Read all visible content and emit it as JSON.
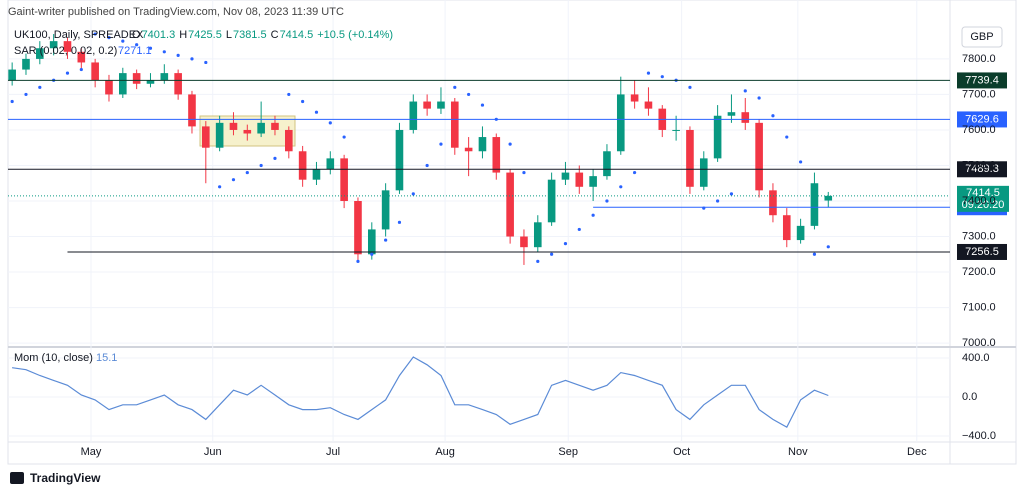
{
  "header": {
    "publisher": "Gaint-writer published on TradingView.com, Nov 08, 2023 11:39 UTC"
  },
  "footer": {
    "logo": "TradingView"
  },
  "chart_data": {
    "type": "candlestick",
    "symbol": "UK100, Daily, SPREADEX",
    "ohlc_letters": [
      "O",
      "H",
      "L",
      "C"
    ],
    "change": "+10.5 (+0.14%)",
    "currency": "GBP",
    "up_color": "#089981",
    "down_color": "#f23645",
    "candles": [
      [
        7740,
        7790,
        7725,
        7770
      ],
      [
        7770,
        7815,
        7755,
        7800
      ],
      [
        7800,
        7850,
        7785,
        7830
      ],
      [
        7830,
        7870,
        7810,
        7850
      ],
      [
        7850,
        7860,
        7800,
        7820
      ],
      [
        7820,
        7830,
        7770,
        7790
      ],
      [
        7790,
        7800,
        7720,
        7740
      ],
      [
        7740,
        7755,
        7680,
        7700
      ],
      [
        7700,
        7775,
        7690,
        7760
      ],
      [
        7760,
        7770,
        7715,
        7730
      ],
      [
        7730,
        7760,
        7720,
        7740
      ],
      [
        7740,
        7785,
        7730,
        7760
      ],
      [
        7760,
        7770,
        7685,
        7700
      ],
      [
        7700,
        7710,
        7590,
        7610
      ],
      [
        7610,
        7625,
        7450,
        7550
      ],
      [
        7550,
        7640,
        7540,
        7620
      ],
      [
        7620,
        7650,
        7585,
        7600
      ],
      [
        7600,
        7615,
        7570,
        7590
      ],
      [
        7590,
        7680,
        7580,
        7620
      ],
      [
        7620,
        7640,
        7585,
        7600
      ],
      [
        7600,
        7610,
        7520,
        7540
      ],
      [
        7540,
        7555,
        7440,
        7460
      ],
      [
        7460,
        7510,
        7445,
        7490
      ],
      [
        7490,
        7540,
        7475,
        7520
      ],
      [
        7520,
        7530,
        7380,
        7400
      ],
      [
        7400,
        7410,
        7230,
        7250
      ],
      [
        7250,
        7340,
        7235,
        7320
      ],
      [
        7320,
        7450,
        7300,
        7430
      ],
      [
        7430,
        7620,
        7420,
        7600
      ],
      [
        7600,
        7700,
        7590,
        7680
      ],
      [
        7680,
        7700,
        7640,
        7660
      ],
      [
        7660,
        7720,
        7645,
        7680
      ],
      [
        7680,
        7690,
        7530,
        7550
      ],
      [
        7550,
        7580,
        7470,
        7540
      ],
      [
        7540,
        7610,
        7520,
        7580
      ],
      [
        7580,
        7590,
        7460,
        7480
      ],
      [
        7480,
        7490,
        7280,
        7300
      ],
      [
        7300,
        7320,
        7220,
        7270
      ],
      [
        7270,
        7360,
        7255,
        7340
      ],
      [
        7340,
        7480,
        7330,
        7460
      ],
      [
        7460,
        7510,
        7445,
        7480
      ],
      [
        7480,
        7500,
        7420,
        7440
      ],
      [
        7440,
        7490,
        7400,
        7470
      ],
      [
        7470,
        7560,
        7460,
        7540
      ],
      [
        7540,
        7750,
        7530,
        7700
      ],
      [
        7700,
        7740,
        7660,
        7680
      ],
      [
        7680,
        7720,
        7640,
        7660
      ],
      [
        7660,
        7670,
        7580,
        7600
      ],
      [
        7600,
        7640,
        7570,
        7600
      ],
      [
        7600,
        7610,
        7420,
        7440
      ],
      [
        7440,
        7540,
        7430,
        7520
      ],
      [
        7520,
        7670,
        7510,
        7640
      ],
      [
        7640,
        7700,
        7620,
        7650
      ],
      [
        7650,
        7690,
        7600,
        7620
      ],
      [
        7620,
        7630,
        7410,
        7430
      ],
      [
        7430,
        7450,
        7340,
        7360
      ],
      [
        7360,
        7380,
        7270,
        7290
      ],
      [
        7290,
        7350,
        7280,
        7330
      ],
      [
        7330,
        7480,
        7320,
        7450
      ],
      [
        7401.3,
        7425.5,
        7381.5,
        7414.5
      ]
    ],
    "sar": {
      "name": "SAR (0.02, 0.02, 0.2)",
      "color": "#2962ff",
      "values": [
        7680,
        7700,
        7720,
        7740,
        7760,
        7770,
        7870,
        7860,
        7850,
        7840,
        7830,
        7820,
        7810,
        7800,
        7790,
        7440,
        7460,
        7480,
        7500,
        7520,
        7700,
        7680,
        7650,
        7620,
        7580,
        7230,
        7250,
        7290,
        7340,
        7420,
        7500,
        7560,
        7720,
        7700,
        7670,
        7630,
        7560,
        7480,
        7230,
        7250,
        7280,
        7320,
        7360,
        7400,
        7440,
        7480,
        7760,
        7750,
        7740,
        7720,
        7380,
        7400,
        7420,
        7710,
        7690,
        7640,
        7580,
        7510,
        7250,
        7271.1
      ]
    },
    "current_price": {
      "countdown": "09:20:20"
    },
    "levels": [
      {
        "value": 7739.4,
        "color": "#0b3d2b"
      },
      {
        "value": 7629.6,
        "color": "#2962ff"
      },
      {
        "value": 7489.3,
        "color": "#131722"
      },
      {
        "value": 7382.5,
        "color": "#2962ff",
        "from": 42
      },
      {
        "value": 7256.5,
        "color": "#131722",
        "from": 4
      }
    ],
    "ylim": [
      6989,
      7887
    ],
    "yticks": [
      {
        "value": 7000,
        "label": "7000.0"
      },
      {
        "value": 7100,
        "label": "7100.0"
      },
      {
        "value": 7200,
        "label": "7200.0"
      },
      {
        "value": 7300,
        "label": "7300.0"
      },
      {
        "value": 7400,
        "label": "7400.0"
      },
      {
        "value": 7500,
        "label": "7500.0"
      },
      {
        "value": 7600,
        "label": "7600.0"
      },
      {
        "value": 7700,
        "label": "7700.0"
      },
      {
        "value": 7800,
        "label": "7800.0"
      }
    ],
    "xlim": [
      -0.3,
      67.8
    ],
    "xticks": [
      {
        "value": 5.7,
        "label": "May"
      },
      {
        "value": 14.5,
        "label": "Jun"
      },
      {
        "value": 23.2,
        "label": "Jul"
      },
      {
        "value": 31.3,
        "label": "Aug"
      },
      {
        "value": 40.2,
        "label": "Sep"
      },
      {
        "value": 48.4,
        "label": "Oct"
      },
      {
        "value": 56.8,
        "label": "Nov"
      },
      {
        "value": 65.4,
        "label": "Dec"
      }
    ],
    "grid": true,
    "momentum": {
      "name": "Mom (10, close)",
      "color": "#5b8bd6",
      "values": [
        300,
        280,
        220,
        170,
        120,
        20,
        -30,
        -130,
        -80,
        -80,
        -30,
        20,
        -80,
        -130,
        -230,
        -80,
        70,
        20,
        120,
        20,
        -80,
        -130,
        -130,
        -110,
        -180,
        -230,
        -130,
        -30,
        220,
        410,
        330,
        220,
        -80,
        -80,
        -130,
        -180,
        -280,
        -230,
        -180,
        120,
        170,
        120,
        70,
        120,
        250,
        220,
        170,
        120,
        -130,
        -230,
        -80,
        20,
        120,
        120,
        -130,
        -230,
        -310,
        -30,
        70,
        15.1
      ],
      "ylim": [
        -462,
        482
      ],
      "yticks": [
        {
          "value": 400,
          "label": "400.0"
        },
        {
          "value": 0,
          "label": "0.0"
        },
        {
          "value": -400,
          "label": "−400.0"
        }
      ]
    }
  }
}
